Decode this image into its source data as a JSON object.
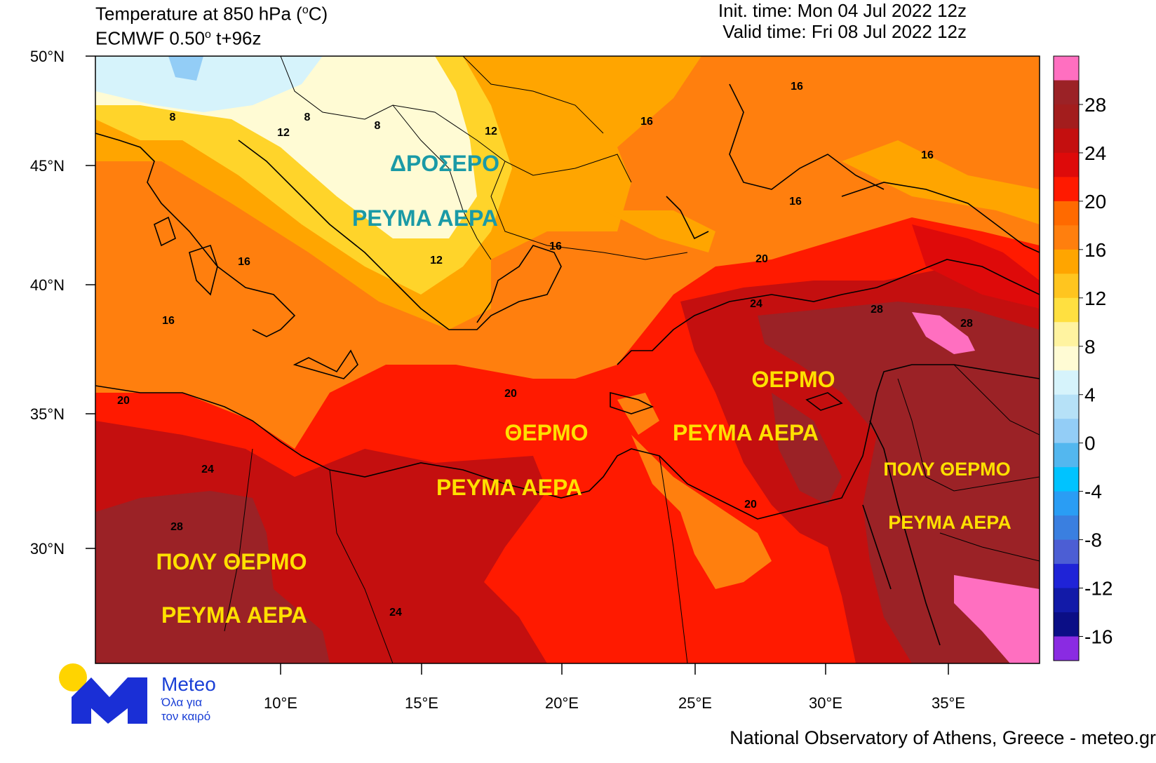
{
  "header": {
    "title_prefix": "Temperature at 850 hPa (",
    "title_deg": "o",
    "title_suffix": "C)",
    "model_prefix": "ECMWF 0.50",
    "model_deg": "o",
    "model_suffix": " t+96z",
    "init_time": "Init. time: Mon 04 Jul 2022 12z",
    "valid_time": "Valid time: Fri 08 Jul 2022 12z"
  },
  "axes": {
    "lat_labels": [
      "50°N",
      "45°N",
      "40°N",
      "35°N",
      "30°N"
    ],
    "lon_labels": [
      "10°E",
      "15°E",
      "20°E",
      "25°E",
      "30°E",
      "35°E"
    ]
  },
  "legend": {
    "labels": [
      "28",
      "24",
      "20",
      "16",
      "12",
      "8",
      "4",
      "0",
      "-4",
      "-8",
      "-12",
      "-16"
    ],
    "colors": [
      "#ff6fc0",
      "#9b2226",
      "#a31d1d",
      "#c40f0f",
      "#de0a0a",
      "#ff1a00",
      "#ff6a00",
      "#ff7f0e",
      "#ffa500",
      "#ffc51f",
      "#ffe040",
      "#fff3a0",
      "#fffbd4",
      "#d6f3fb",
      "#b6e1f7",
      "#93cdf6",
      "#53b7ef",
      "#00c3ff",
      "#2a9df4",
      "#3a7fe0",
      "#4c5ed4",
      "#1f23d7",
      "#121aa8",
      "#0b0e86",
      "#8a2be2"
    ]
  },
  "contour_labels": [
    "8",
    "8",
    "8",
    "12",
    "12",
    "12",
    "16",
    "16",
    "16",
    "16",
    "16",
    "16",
    "16",
    "20",
    "20",
    "20",
    "20",
    "24",
    "24",
    "24",
    "28",
    "28",
    "28"
  ],
  "annotations": {
    "cool_1": "ΔΡΟΣΕΡΟ",
    "cool_2": "ΡΕΥΜΑ ΑΕΡΑ",
    "warm_1": "ΘΕΡΜΟ",
    "warm_2": "ΡΕΥΜΑ ΑΕΡΑ",
    "east_1": "ΘΕΡΜΟ",
    "east_2": "ΡΕΥΜΑ ΑΕΡΑ",
    "mid_2": "ΡΕΥΜΑ ΑΕΡΑ",
    "hot_w_1": "ΠΟΛΥ ΘΕΡΜΟ",
    "hot_w_2": "ΡΕΥΜΑ ΑΕΡΑ",
    "hot_e_1": "ΠΟΛΥ ΘΕΡΜΟ",
    "hot_e_2": "ΡΕΥΜΑ ΑΕΡΑ"
  },
  "logo": {
    "name": "Meteo",
    "tagline_1": "Όλα για",
    "tagline_2": "τον καιρό"
  },
  "footer": "National Observatory of Athens, Greece - meteo.gr"
}
